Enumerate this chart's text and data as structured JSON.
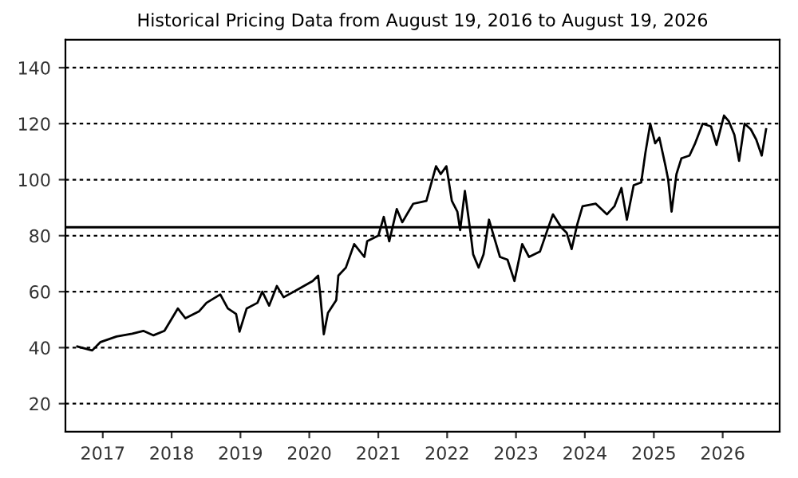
{
  "chart_data": {
    "type": "line",
    "title": "Historical Pricing Data from August 19, 2016 to August 19, 2026",
    "x": [
      "2016-08-19",
      "2016-11-06",
      "2016-12-20",
      "2017-03-15",
      "2017-06-06",
      "2017-08-04",
      "2017-09-27",
      "2017-11-24",
      "2018-02-03",
      "2018-03-15",
      "2018-05-27",
      "2018-07-05",
      "2018-09-16",
      "2018-10-26",
      "2018-12-09",
      "2018-12-27",
      "2019-02-03",
      "2019-04-01",
      "2019-04-27",
      "2019-06-02",
      "2019-07-13",
      "2019-08-18",
      "2019-10-27",
      "2020-01-19",
      "2020-02-17",
      "2020-02-28",
      "2020-03-18",
      "2020-04-09",
      "2020-05-23",
      "2020-06-03",
      "2020-07-13",
      "2020-08-26",
      "2020-10-19",
      "2020-11-03",
      "2021-01-01",
      "2021-01-30",
      "2021-02-28",
      "2021-04-09",
      "2021-05-08",
      "2021-07-05",
      "2021-09-13",
      "2021-11-03",
      "2021-11-28",
      "2021-12-28",
      "2022-01-26",
      "2022-02-24",
      "2022-03-11",
      "2022-04-05",
      "2022-05-05",
      "2022-05-19",
      "2022-06-17",
      "2022-07-13",
      "2022-08-11",
      "2022-09-09",
      "2022-10-08",
      "2022-11-17",
      "2022-12-24",
      "2023-02-03",
      "2023-03-11",
      "2023-05-08",
      "2023-06-21",
      "2023-07-16",
      "2023-08-29",
      "2023-09-27",
      "2023-10-23",
      "2023-11-21",
      "2023-12-20",
      "2024-02-28",
      "2024-04-27",
      "2024-06-06",
      "2024-07-13",
      "2024-08-11",
      "2024-09-16",
      "2024-10-26",
      "2024-11-17",
      "2024-12-13",
      "2025-01-08",
      "2025-01-30",
      "2025-03-04",
      "2025-03-18",
      "2025-04-05",
      "2025-05-01",
      "2025-05-27",
      "2025-07-09",
      "2025-08-08",
      "2025-09-17",
      "2025-10-31",
      "2025-11-29",
      "2026-01-08",
      "2026-02-03",
      "2026-03-04",
      "2026-03-29",
      "2026-04-27",
      "2026-05-30",
      "2026-06-28",
      "2026-07-27",
      "2026-08-19"
    ],
    "series": [
      {
        "color": "#000000",
        "values": [
          40.4,
          39,
          42,
          44,
          45,
          46,
          44.4,
          46,
          54,
          50.5,
          53,
          56,
          59,
          54,
          52,
          45.7,
          54,
          56,
          60,
          55,
          62,
          58,
          60.6,
          63.8,
          65.7,
          59,
          44.8,
          52.4,
          57,
          65.7,
          68.6,
          77,
          72.4,
          78,
          80,
          86.7,
          78,
          89.5,
          84.8,
          91.4,
          92.4,
          104.8,
          102,
          104.8,
          92.4,
          88.6,
          82,
          96,
          81,
          73.3,
          68.6,
          73.3,
          85.7,
          79,
          72.4,
          71.4,
          63.8,
          77,
          72.4,
          74.3,
          82.9,
          87.6,
          82.9,
          81,
          75.2,
          83.8,
          90.5,
          91.4,
          87.6,
          90.5,
          97,
          85.7,
          98,
          99,
          109.5,
          120,
          113,
          115,
          104.8,
          100,
          88.6,
          102,
          107.6,
          108.6,
          113,
          120,
          119,
          112.4,
          122.9,
          120.8,
          116,
          106.7,
          120,
          118,
          114.3,
          108.6,
          118
        ]
      }
    ],
    "xlim": [
      "2016-06-17",
      "2026-10-30"
    ],
    "xticks": [
      {
        "value": "2017-01-01",
        "label": "2017"
      },
      {
        "value": "2018-01-01",
        "label": "2018"
      },
      {
        "value": "2019-01-01",
        "label": "2019"
      },
      {
        "value": "2020-01-01",
        "label": "2020"
      },
      {
        "value": "2021-01-01",
        "label": "2021"
      },
      {
        "value": "2022-01-01",
        "label": "2022"
      },
      {
        "value": "2023-01-01",
        "label": "2023"
      },
      {
        "value": "2024-01-01",
        "label": "2024"
      },
      {
        "value": "2025-01-01",
        "label": "2025"
      },
      {
        "value": "2026-01-01",
        "label": "2026"
      }
    ],
    "ylim": [
      10,
      150
    ],
    "yticks": [
      20,
      40,
      60,
      80,
      100,
      120,
      140
    ],
    "grid": "y",
    "legend": false,
    "ref_lines": [
      {
        "axis": "y",
        "value": 83,
        "color": "#000000",
        "line_style": "solid"
      }
    ]
  }
}
